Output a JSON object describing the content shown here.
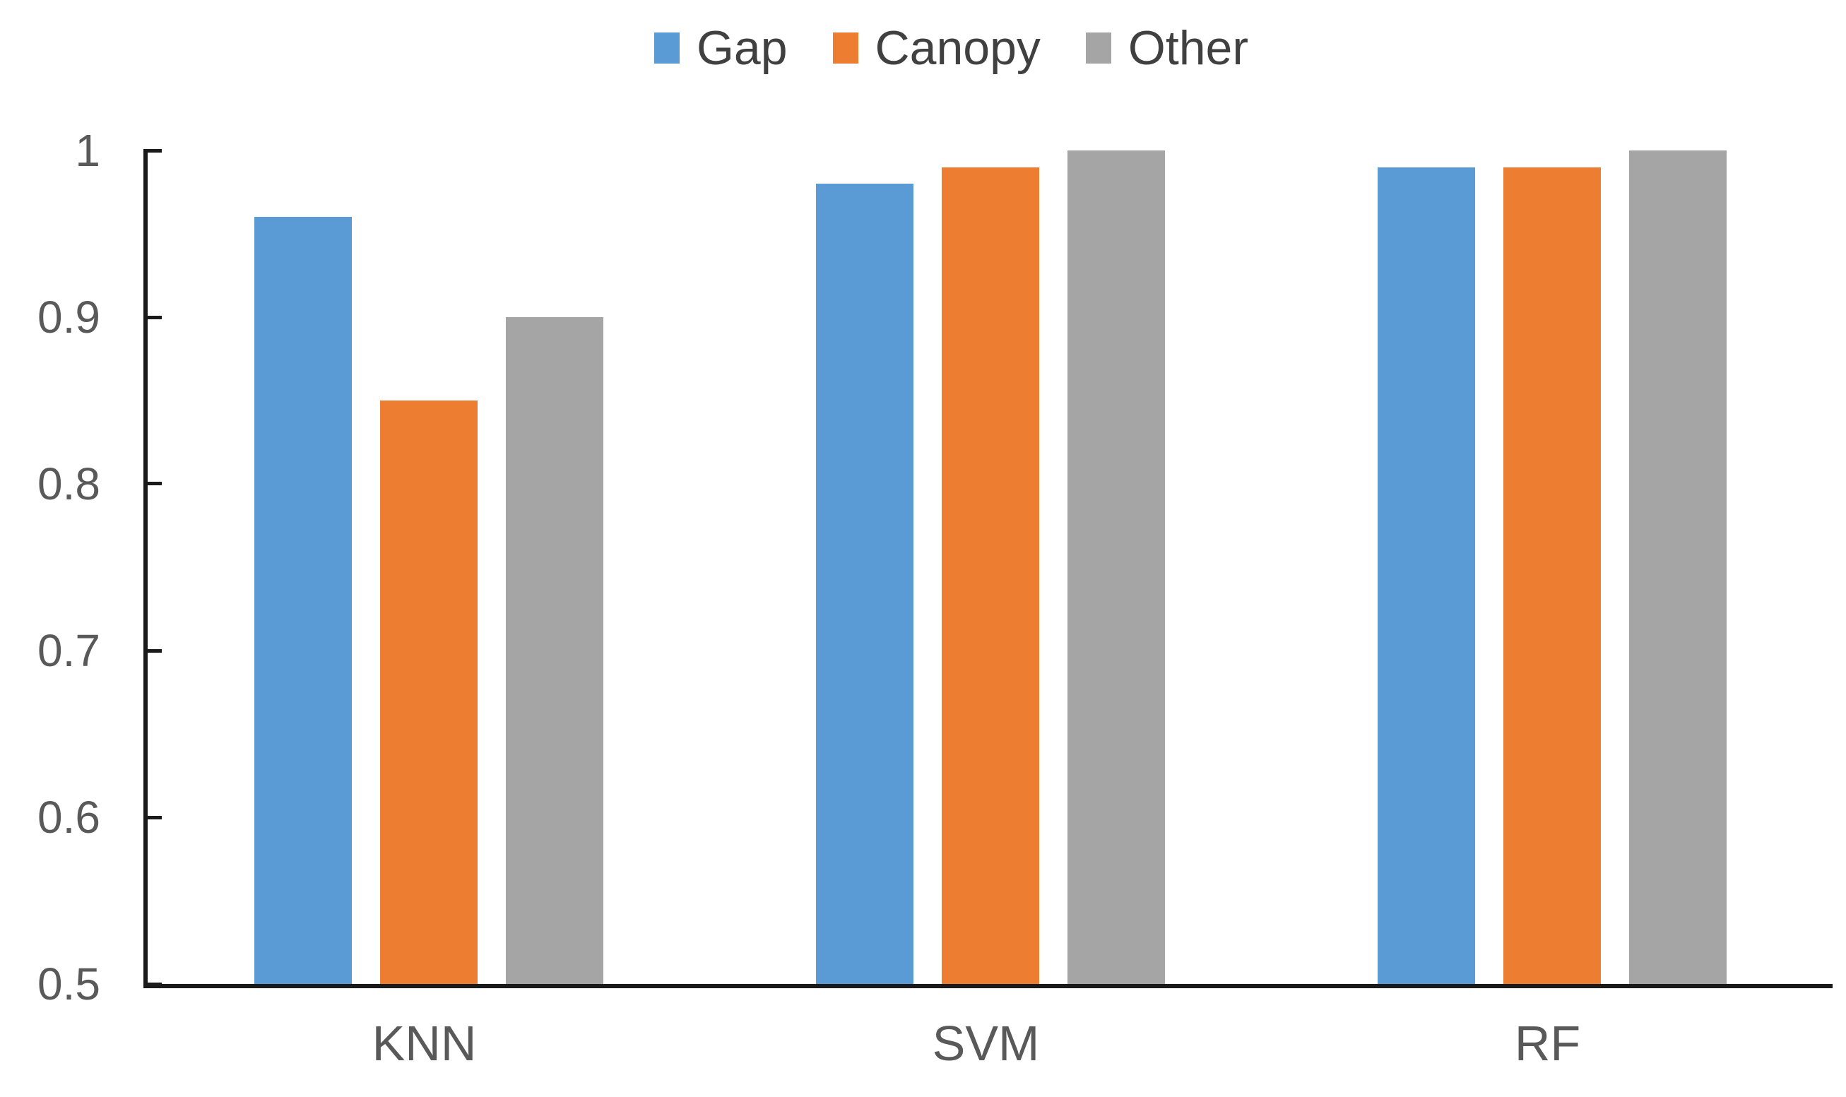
{
  "legend": {
    "items": [
      {
        "label": "Gap",
        "color": "#5B9BD5",
        "marker": "square-icon"
      },
      {
        "label": "Canopy",
        "color": "#ED7D31",
        "marker": "square-icon"
      },
      {
        "label": "Other",
        "color": "#A5A5A5",
        "marker": "square-icon"
      }
    ]
  },
  "chart_data": {
    "type": "bar",
    "categories": [
      "KNN",
      "SVM",
      "RF"
    ],
    "series": [
      {
        "name": "Gap",
        "color": "#5B9BD5",
        "values": [
          0.96,
          0.98,
          0.99
        ]
      },
      {
        "name": "Canopy",
        "color": "#ED7D31",
        "values": [
          0.85,
          0.99,
          0.99
        ]
      },
      {
        "name": "Other",
        "color": "#A5A5A5",
        "values": [
          0.9,
          1.0,
          1.0
        ]
      }
    ],
    "title": "",
    "xlabel": "",
    "ylabel": "",
    "ylim": [
      0.5,
      1.0
    ],
    "yticks": [
      0.5,
      0.6,
      0.7,
      0.8,
      0.9,
      1
    ],
    "ytick_labels": [
      "0.5",
      "0.6",
      "0.7",
      "0.8",
      "0.9",
      "1"
    ],
    "grid": false,
    "legend_position": "top"
  },
  "colors": {
    "axis_line": "#1a1a1a",
    "axis_text": "#595959",
    "legend_text": "#404040",
    "background": "#ffffff"
  }
}
